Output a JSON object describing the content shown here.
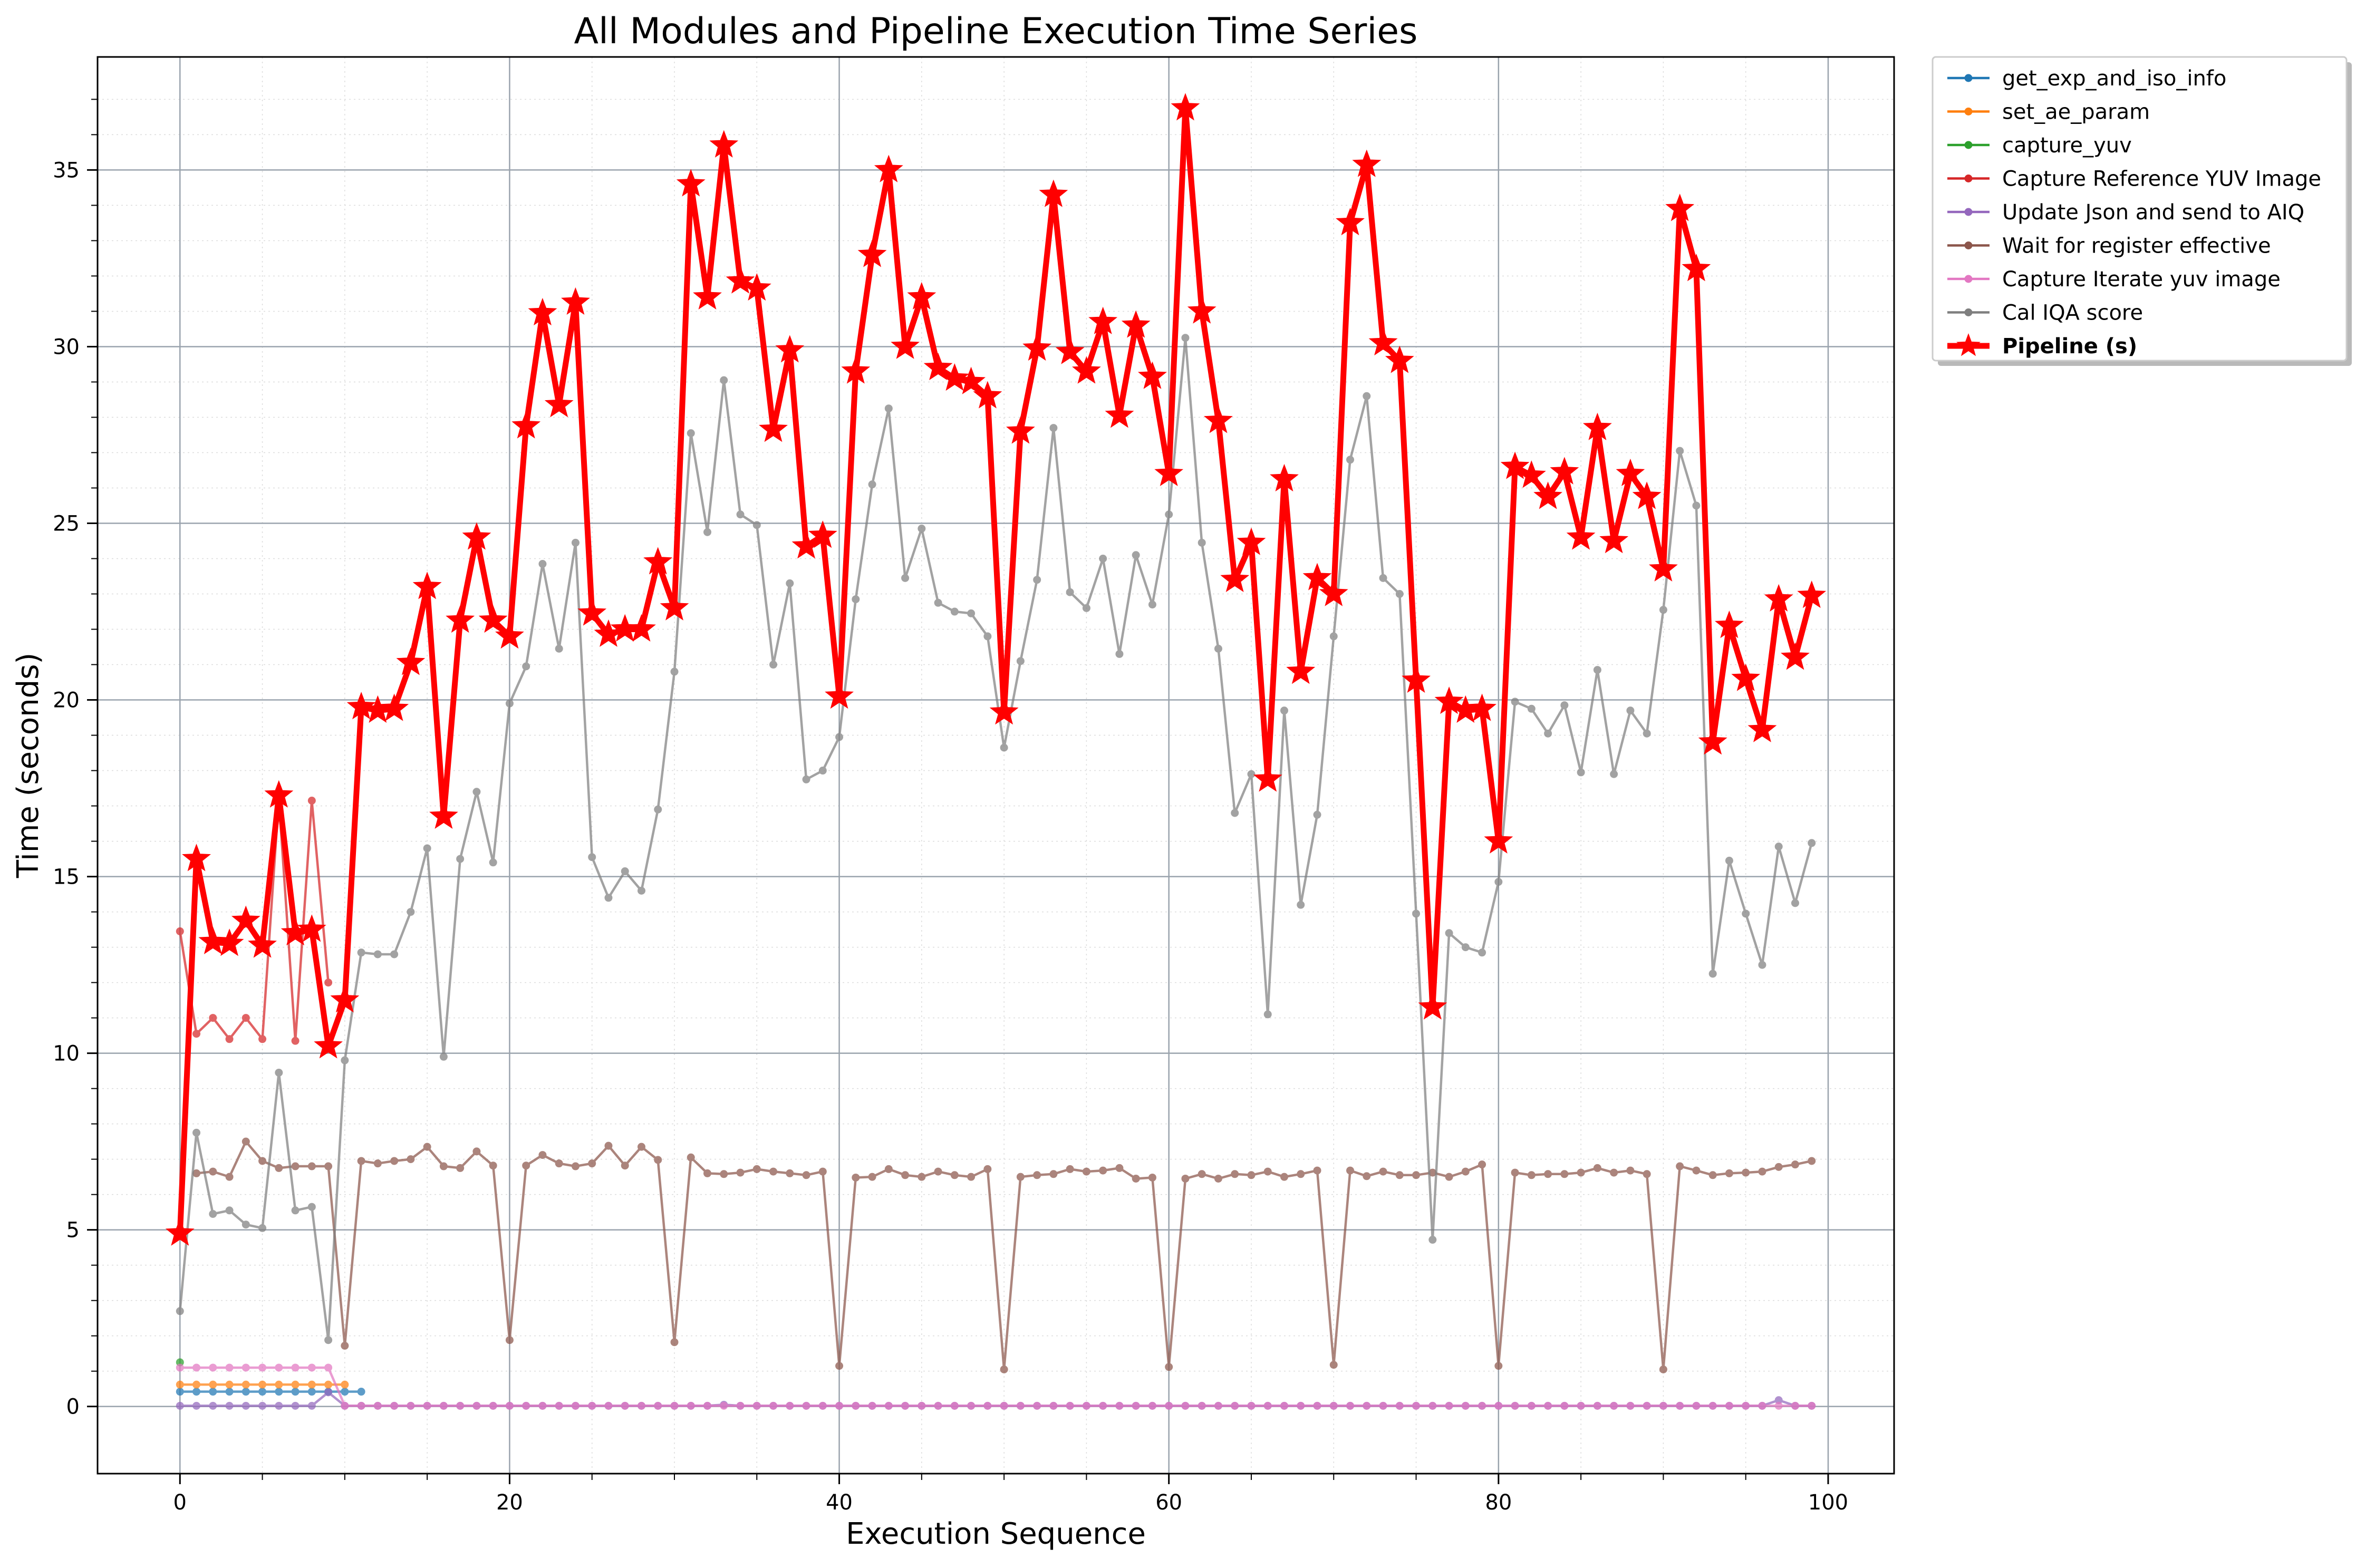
{
  "chart_data": {
    "type": "line",
    "title": "All Modules and Pipeline Execution Time Series",
    "xlabel": "Execution Sequence",
    "ylabel": "Time (seconds)",
    "xlim": [
      -5,
      104
    ],
    "ylim": [
      -1.9,
      38.2
    ],
    "xticks": [
      0,
      20,
      40,
      60,
      80,
      100
    ],
    "xtick_labels": [
      "0",
      "20",
      "40",
      "60",
      "80",
      "100"
    ],
    "yticks": [
      0,
      5,
      10,
      15,
      20,
      25,
      30,
      35
    ],
    "ytick_labels": [
      "0",
      "5",
      "10",
      "15",
      "20",
      "25",
      "30",
      "35"
    ],
    "grid": true,
    "legend_position": "outside-top-right",
    "series": [
      {
        "name": "get_exp_and_iso_info",
        "color": "#1f77b4",
        "x": [
          0,
          1,
          2,
          3,
          4,
          5,
          6,
          7,
          8,
          9,
          10,
          11
        ],
        "values": [
          0.42,
          0.42,
          0.42,
          0.42,
          0.42,
          0.42,
          0.42,
          0.42,
          0.42,
          0.42,
          0.42,
          0.42
        ]
      },
      {
        "name": "set_ae_param",
        "color": "#ff7f0e",
        "x": [
          0,
          1,
          2,
          3,
          4,
          5,
          6,
          7,
          8,
          9,
          10
        ],
        "values": [
          0.62,
          0.62,
          0.62,
          0.62,
          0.62,
          0.62,
          0.62,
          0.62,
          0.62,
          0.62,
          0.62
        ]
      },
      {
        "name": "capture_yuv",
        "color": "#2ca02c",
        "x": [
          0
        ],
        "values": [
          1.25
        ]
      },
      {
        "name": "Capture Reference YUV Image",
        "color": "#d62728",
        "x": [
          0,
          1,
          2,
          3,
          4,
          5,
          6,
          7,
          8,
          9
        ],
        "values": [
          13.45,
          10.55,
          11.0,
          10.4,
          11.0,
          10.4,
          17.2,
          10.35,
          17.15,
          12.0
        ]
      },
      {
        "name": "Update Json and send to AIQ",
        "color": "#9467bd",
        "x": [
          0,
          1,
          2,
          3,
          4,
          5,
          6,
          7,
          8,
          9,
          10,
          11,
          12,
          13,
          14,
          15,
          16,
          17,
          18,
          19,
          20,
          21,
          22,
          23,
          24,
          25,
          26,
          27,
          28,
          29,
          30,
          31,
          32,
          33,
          34,
          35,
          36,
          37,
          38,
          39,
          40,
          41,
          42,
          43,
          44,
          45,
          46,
          47,
          48,
          49,
          50,
          51,
          52,
          53,
          54,
          55,
          56,
          57,
          58,
          59,
          60,
          61,
          62,
          63,
          64,
          65,
          66,
          67,
          68,
          69,
          70,
          71,
          72,
          73,
          74,
          75,
          76,
          77,
          78,
          79,
          80,
          81,
          82,
          83,
          84,
          85,
          86,
          87,
          88,
          89,
          90,
          91,
          92,
          93,
          94,
          95,
          96,
          97,
          98,
          99
        ],
        "values": [
          0.02,
          0.02,
          0.02,
          0.02,
          0.02,
          0.02,
          0.02,
          0.02,
          0.02,
          0.4,
          0.02,
          0.02,
          0.02,
          0.02,
          0.02,
          0.02,
          0.02,
          0.02,
          0.02,
          0.02,
          0.02,
          0.02,
          0.02,
          0.02,
          0.02,
          0.02,
          0.02,
          0.02,
          0.02,
          0.02,
          0.02,
          0.02,
          0.02,
          0.05,
          0.02,
          0.02,
          0.02,
          0.02,
          0.02,
          0.02,
          0.02,
          0.02,
          0.02,
          0.02,
          0.02,
          0.02,
          0.02,
          0.02,
          0.02,
          0.02,
          0.02,
          0.02,
          0.02,
          0.02,
          0.02,
          0.02,
          0.02,
          0.02,
          0.02,
          0.02,
          0.02,
          0.02,
          0.02,
          0.02,
          0.02,
          0.02,
          0.02,
          0.02,
          0.02,
          0.02,
          0.02,
          0.02,
          0.02,
          0.02,
          0.02,
          0.02,
          0.02,
          0.02,
          0.02,
          0.02,
          0.02,
          0.02,
          0.02,
          0.02,
          0.02,
          0.02,
          0.02,
          0.02,
          0.02,
          0.02,
          0.02,
          0.02,
          0.02,
          0.02,
          0.02,
          0.02,
          0.02,
          0.18,
          0.02,
          0.02
        ]
      },
      {
        "name": "Wait for register effective",
        "color": "#8c564b",
        "x": [
          1,
          2,
          3,
          4,
          5,
          6,
          7,
          8,
          9,
          10,
          11,
          12,
          13,
          14,
          15,
          16,
          17,
          18,
          19,
          20,
          21,
          22,
          23,
          24,
          25,
          26,
          27,
          28,
          29,
          30,
          31,
          32,
          33,
          34,
          35,
          36,
          37,
          38,
          39,
          40,
          41,
          42,
          43,
          44,
          45,
          46,
          47,
          48,
          49,
          50,
          51,
          52,
          53,
          54,
          55,
          56,
          57,
          58,
          59,
          60,
          61,
          62,
          63,
          64,
          65,
          66,
          67,
          68,
          69,
          70,
          71,
          72,
          73,
          74,
          75,
          76,
          77,
          78,
          79,
          80,
          81,
          82,
          83,
          84,
          85,
          86,
          87,
          88,
          89,
          90,
          91,
          92,
          93,
          94,
          95,
          96,
          97,
          98,
          99
        ],
        "values": [
          6.6,
          6.65,
          6.5,
          7.5,
          6.95,
          6.75,
          6.8,
          6.8,
          6.8,
          1.72,
          6.95,
          6.88,
          6.95,
          7.0,
          7.35,
          6.8,
          6.75,
          7.22,
          6.82,
          1.88,
          6.82,
          7.12,
          6.88,
          6.8,
          6.88,
          7.38,
          6.82,
          7.35,
          6.98,
          1.82,
          7.05,
          6.6,
          6.58,
          6.62,
          6.72,
          6.65,
          6.6,
          6.55,
          6.65,
          1.15,
          6.48,
          6.5,
          6.72,
          6.55,
          6.5,
          6.65,
          6.55,
          6.5,
          6.72,
          1.05,
          6.5,
          6.55,
          6.58,
          6.72,
          6.65,
          6.68,
          6.75,
          6.45,
          6.48,
          1.12,
          6.45,
          6.58,
          6.45,
          6.58,
          6.55,
          6.65,
          6.5,
          6.58,
          6.68,
          1.18,
          6.68,
          6.52,
          6.65,
          6.55,
          6.55,
          6.62,
          6.5,
          6.65,
          6.85,
          1.15,
          6.62,
          6.55,
          6.58,
          6.58,
          6.62,
          6.75,
          6.62,
          6.68,
          6.58,
          1.05,
          6.8,
          6.68,
          6.55,
          6.6,
          6.62,
          6.65,
          6.78,
          6.85,
          6.95
        ]
      },
      {
        "name": "Capture Iterate yuv image",
        "color": "#e377c2",
        "x": [
          0,
          1,
          2,
          3,
          4,
          5,
          6,
          7,
          8,
          9,
          10,
          11,
          12,
          13,
          14,
          15,
          16,
          17,
          18,
          19,
          20,
          21,
          22,
          23,
          24,
          25,
          26,
          27,
          28,
          29,
          30,
          31,
          32,
          33,
          34,
          35,
          36,
          37,
          38,
          39,
          40,
          41,
          42,
          43,
          44,
          45,
          46,
          47,
          48,
          49,
          50,
          51,
          52,
          53,
          54,
          55,
          56,
          57,
          58,
          59,
          60,
          61,
          62,
          63,
          64,
          65,
          66,
          67,
          68,
          69,
          70,
          71,
          72,
          73,
          74,
          75,
          76,
          77,
          78,
          79,
          80,
          81,
          82,
          83,
          84,
          85,
          86,
          87,
          88,
          89,
          90,
          91,
          92,
          93,
          94,
          95,
          96,
          97,
          98,
          99
        ],
        "values": [
          1.1,
          1.1,
          1.1,
          1.1,
          1.1,
          1.1,
          1.1,
          1.1,
          1.1,
          1.1,
          0.02,
          0.02,
          0.02,
          0.02,
          0.02,
          0.02,
          0.02,
          0.02,
          0.02,
          0.02,
          0.02,
          0.02,
          0.02,
          0.02,
          0.02,
          0.02,
          0.02,
          0.02,
          0.02,
          0.02,
          0.02,
          0.02,
          0.02,
          0.02,
          0.02,
          0.02,
          0.02,
          0.02,
          0.02,
          0.02,
          0.02,
          0.02,
          0.02,
          0.02,
          0.02,
          0.02,
          0.02,
          0.02,
          0.02,
          0.02,
          0.02,
          0.02,
          0.02,
          0.02,
          0.02,
          0.02,
          0.02,
          0.02,
          0.02,
          0.02,
          0.02,
          0.02,
          0.02,
          0.02,
          0.02,
          0.02,
          0.02,
          0.02,
          0.02,
          0.02,
          0.02,
          0.02,
          0.02,
          0.02,
          0.02,
          0.02,
          0.02,
          0.02,
          0.02,
          0.02,
          0.02,
          0.02,
          0.02,
          0.02,
          0.02,
          0.02,
          0.02,
          0.02,
          0.02,
          0.02,
          0.02,
          0.02,
          0.02,
          0.02,
          0.02,
          0.02,
          0.02,
          0.02,
          0.02,
          0.02
        ]
      },
      {
        "name": "Cal IQA score",
        "color": "#7f7f7f",
        "x": [
          0,
          1,
          2,
          3,
          4,
          5,
          6,
          7,
          8,
          9,
          10,
          11,
          12,
          13,
          14,
          15,
          16,
          17,
          18,
          19,
          20,
          21,
          22,
          23,
          24,
          25,
          26,
          27,
          28,
          29,
          30,
          31,
          32,
          33,
          34,
          35,
          36,
          37,
          38,
          39,
          40,
          41,
          42,
          43,
          44,
          45,
          46,
          47,
          48,
          49,
          50,
          51,
          52,
          53,
          54,
          55,
          56,
          57,
          58,
          59,
          60,
          61,
          62,
          63,
          64,
          65,
          66,
          67,
          68,
          69,
          70,
          71,
          72,
          73,
          74,
          75,
          76,
          77,
          78,
          79,
          80,
          81,
          82,
          83,
          84,
          85,
          86,
          87,
          88,
          89,
          90,
          91,
          92,
          93,
          94,
          95,
          96,
          97,
          98,
          99
        ],
        "values": [
          2.7,
          7.75,
          5.45,
          5.55,
          5.15,
          5.05,
          9.45,
          5.55,
          5.65,
          1.88,
          9.8,
          12.85,
          12.8,
          12.8,
          14.0,
          15.8,
          9.9,
          15.5,
          17.4,
          15.4,
          19.9,
          20.95,
          23.85,
          21.45,
          24.45,
          15.55,
          14.4,
          15.15,
          14.6,
          16.9,
          20.8,
          27.55,
          24.75,
          29.05,
          25.25,
          24.95,
          21.0,
          23.3,
          17.75,
          18.0,
          18.95,
          22.85,
          26.1,
          28.25,
          23.45,
          24.85,
          22.75,
          22.5,
          22.45,
          21.8,
          18.65,
          21.1,
          23.4,
          27.7,
          23.05,
          22.6,
          24.0,
          21.3,
          24.1,
          22.7,
          25.25,
          30.25,
          24.45,
          21.45,
          16.8,
          17.9,
          11.1,
          19.7,
          14.2,
          16.75,
          21.8,
          26.8,
          28.6,
          23.45,
          23.0,
          13.95,
          4.72,
          13.4,
          13.0,
          12.85,
          14.85,
          19.95,
          19.75,
          19.05,
          19.85,
          17.95,
          20.85,
          17.9,
          19.7,
          19.05,
          22.55,
          27.05,
          25.5,
          12.25,
          15.45,
          13.95,
          12.5,
          15.85,
          14.25,
          15.95
        ]
      },
      {
        "name": "Pipeline (s)",
        "color": "#ff0000",
        "x": [
          0,
          1,
          2,
          3,
          4,
          5,
          6,
          7,
          8,
          9,
          10,
          11,
          12,
          13,
          14,
          15,
          16,
          17,
          18,
          19,
          20,
          21,
          22,
          23,
          24,
          25,
          26,
          27,
          28,
          29,
          30,
          31,
          32,
          33,
          34,
          35,
          36,
          37,
          38,
          39,
          40,
          41,
          42,
          43,
          44,
          45,
          46,
          47,
          48,
          49,
          50,
          51,
          52,
          53,
          54,
          55,
          56,
          57,
          58,
          59,
          60,
          61,
          62,
          63,
          64,
          65,
          66,
          67,
          68,
          69,
          70,
          71,
          72,
          73,
          74,
          75,
          76,
          77,
          78,
          79,
          80,
          81,
          82,
          83,
          84,
          85,
          86,
          87,
          88,
          89,
          90,
          91,
          92,
          93,
          94,
          95,
          96,
          97,
          98,
          99
        ],
        "values": [
          4.9,
          15.5,
          13.15,
          13.1,
          13.75,
          13.05,
          17.3,
          13.4,
          13.5,
          10.2,
          11.5,
          19.8,
          19.7,
          19.75,
          21.05,
          23.2,
          16.7,
          22.25,
          24.6,
          22.25,
          21.8,
          27.75,
          30.95,
          28.35,
          31.25,
          22.45,
          21.85,
          22.0,
          22.0,
          23.9,
          22.6,
          34.6,
          31.4,
          35.7,
          31.85,
          31.65,
          27.65,
          29.9,
          24.35,
          24.65,
          20.1,
          29.3,
          32.6,
          35.0,
          30.0,
          31.4,
          29.4,
          29.1,
          29.0,
          28.6,
          19.65,
          27.6,
          29.95,
          34.3,
          29.85,
          29.3,
          30.7,
          28.05,
          30.6,
          29.15,
          26.4,
          36.75,
          31.0,
          27.9,
          23.4,
          24.45,
          17.75,
          26.25,
          20.8,
          23.45,
          23.0,
          33.5,
          35.15,
          30.1,
          29.6,
          20.55,
          11.3,
          19.95,
          19.7,
          19.75,
          16.0,
          26.6,
          26.35,
          25.75,
          26.45,
          24.6,
          27.7,
          24.5,
          26.4,
          25.75,
          23.7,
          33.9,
          32.2,
          18.8,
          22.1,
          20.6,
          19.15,
          22.85,
          21.2,
          22.95
        ]
      }
    ]
  }
}
